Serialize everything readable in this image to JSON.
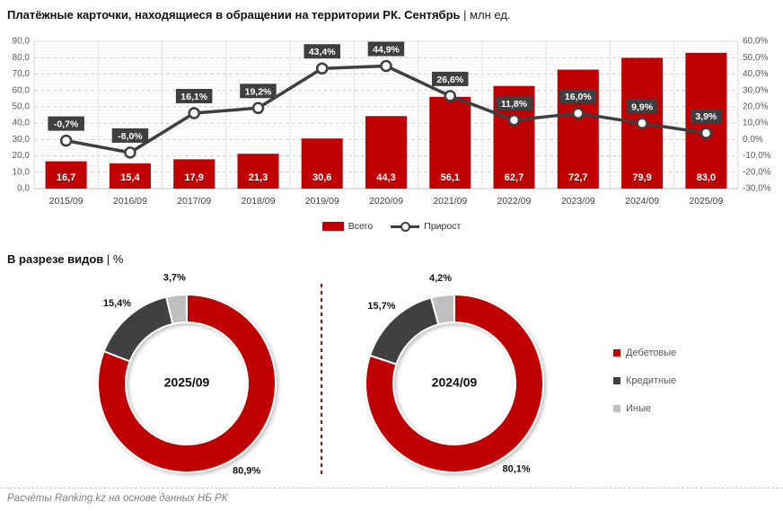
{
  "page": {
    "title_bold": "Платёжные карточки, находящиеся в обращении на территории РК. Сентябрь",
    "title_rest": " | млн ед.",
    "section_bold": "В разрезе видов",
    "section_rest": " | %",
    "footer": "Расчёты Ranking.kz на основе данных НБ РК"
  },
  "colors": {
    "accent_red": "#C00000",
    "dark_gray": "#3F3F3F",
    "light_gray": "#BFBFBF",
    "grid_major": "#C9C9C9",
    "grid_minor": "#F3F3F3",
    "axis_text": "#595959",
    "footer_text": "#7F7F7F"
  },
  "chart_data": [
    {
      "type": "bar",
      "name": "cards-in-circulation-combo",
      "title": "Платёжные карточки, находящиеся в обращении на территории РК. Сентябрь | млн ед.",
      "xlabel": "",
      "ylabel": "",
      "grid": true,
      "legend_position": "bottom",
      "categories": [
        "2015/09",
        "2016/09",
        "2017/09",
        "2018/09",
        "2019/09",
        "2020/09",
        "2021/09",
        "2022/09",
        "2023/09",
        "2024/09",
        "2025/09"
      ],
      "series": [
        {
          "name": "Всего",
          "type": "bar",
          "axis": "left",
          "color": "#C00000",
          "values": [
            16.7,
            15.4,
            17.9,
            21.3,
            30.6,
            44.3,
            56.1,
            62.7,
            72.7,
            79.9,
            83.0
          ],
          "labels": [
            "16,7",
            "15,4",
            "17,9",
            "21,3",
            "30,6",
            "44,3",
            "56,1",
            "62,7",
            "72,7",
            "79,9",
            "83,0"
          ]
        },
        {
          "name": "Прирост",
          "type": "line",
          "axis": "right",
          "color": "#3F3F3F",
          "values": [
            -0.7,
            -8.0,
            16.1,
            19.2,
            43.4,
            44.9,
            26.6,
            11.8,
            16.0,
            9.9,
            3.9
          ],
          "labels": [
            "-0,7%",
            "-8,0%",
            "16,1%",
            "19,2%",
            "43,4%",
            "44,9%",
            "26,6%",
            "11,8%",
            "16,0%",
            "9,9%",
            "3,9%"
          ]
        }
      ],
      "left_axis": {
        "min": 0,
        "max": 90,
        "step": 10,
        "tick_labels": [
          "90,0",
          "80,0",
          "70,0",
          "60,0",
          "50,0",
          "40,0",
          "30,0",
          "20,0",
          "10,0",
          "0,0"
        ]
      },
      "right_axis": {
        "min": -30,
        "max": 60,
        "step": 10,
        "tick_labels": [
          "60,0%",
          "50,0%",
          "40,0%",
          "30,0%",
          "20,0%",
          "10,0%",
          "0,0%",
          "-10,0%",
          "-20,0%",
          "-30,0%"
        ]
      }
    },
    {
      "type": "pie",
      "name": "card-types-2025",
      "center_label": "2025/09",
      "slice_names": [
        "Дебетовые",
        "Кредитные",
        "Иные"
      ],
      "values": [
        80.9,
        15.4,
        3.7
      ],
      "labels": [
        "80,9%",
        "15,4%",
        "3,7%"
      ],
      "colors": [
        "#C00000",
        "#3F3F3F",
        "#BFBFBF"
      ]
    },
    {
      "type": "pie",
      "name": "card-types-2024",
      "center_label": "2024/09",
      "slice_names": [
        "Дебетовые",
        "Кредитные",
        "Иные"
      ],
      "values": [
        80.1,
        15.7,
        4.2
      ],
      "labels": [
        "80,1%",
        "15,7%",
        "4,2%"
      ],
      "colors": [
        "#C00000",
        "#3F3F3F",
        "#BFBFBF"
      ]
    }
  ],
  "combo_legend": [
    {
      "label": "Всего",
      "type": "bar",
      "color": "#C00000"
    },
    {
      "label": "Прирост",
      "type": "line",
      "color": "#3F3F3F"
    }
  ],
  "donut_legend": [
    {
      "label": "Дебетовые",
      "color": "#C00000"
    },
    {
      "label": "Кредитные",
      "color": "#3F3F3F"
    },
    {
      "label": "Иные",
      "color": "#BFBFBF"
    }
  ]
}
